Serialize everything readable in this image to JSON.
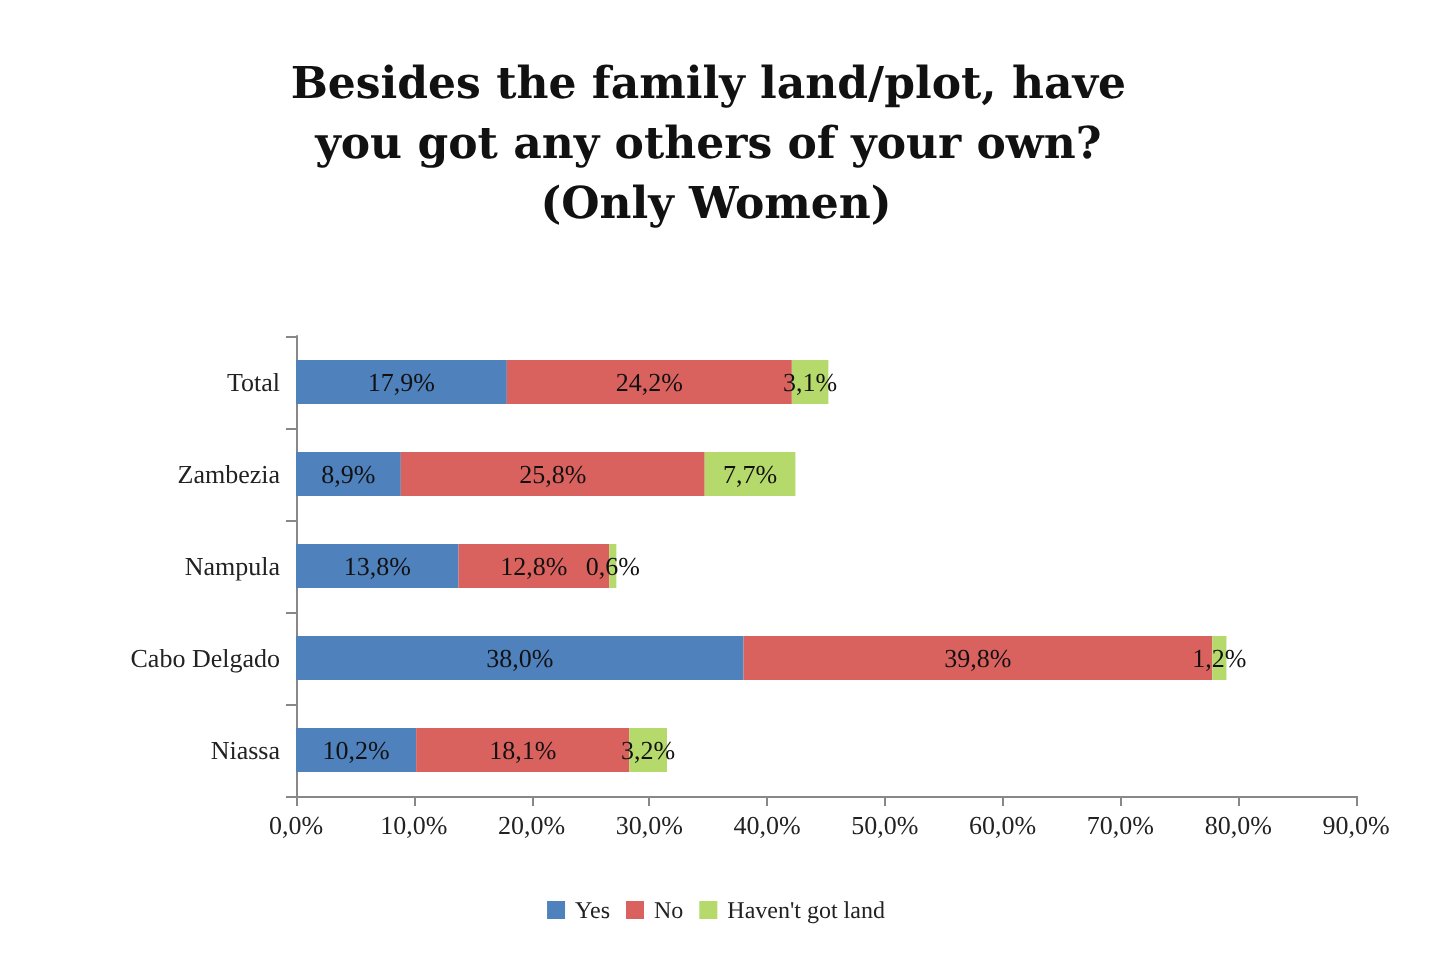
{
  "chart_data": {
    "type": "bar",
    "orientation": "horizontal",
    "stacked": true,
    "title": "Besides the family land/plot, have you got any others of your own? (Only Women)",
    "categories": [
      "Total",
      "Zambezia",
      "Nampula",
      "Cabo Delgado",
      "Niassa"
    ],
    "series": [
      {
        "name": "Yes",
        "color": "#4f81bd",
        "values": [
          17.9,
          8.9,
          13.8,
          38.0,
          10.2
        ],
        "value_labels": [
          "17,9%",
          "8,9%",
          "13,8%",
          "38,0%",
          "10,2%"
        ]
      },
      {
        "name": "No",
        "color": "#d9625f",
        "values": [
          24.2,
          25.8,
          12.8,
          39.8,
          18.1
        ],
        "value_labels": [
          "24,2%",
          "25,8%",
          "12,8%",
          "39,8%",
          "18,1%"
        ]
      },
      {
        "name": "Haven't got land",
        "color": "#b5d96a",
        "values": [
          3.1,
          7.7,
          0.6,
          1.2,
          3.2
        ],
        "value_labels": [
          "3,1%",
          "7,7%",
          "0,6%",
          "1,2%",
          "3,2%"
        ]
      }
    ],
    "xlim": [
      0,
      90
    ],
    "xticks": [
      {
        "value": 0,
        "label": "0,0%"
      },
      {
        "value": 10,
        "label": "10,0%"
      },
      {
        "value": 20,
        "label": "20,0%"
      },
      {
        "value": 30,
        "label": "30,0%"
      },
      {
        "value": 40,
        "label": "40,0%"
      },
      {
        "value": 50,
        "label": "50,0%"
      },
      {
        "value": 60,
        "label": "60,0%"
      },
      {
        "value": 70,
        "label": "70,0%"
      },
      {
        "value": 80,
        "label": "80,0%"
      },
      {
        "value": 90,
        "label": "90,0%"
      }
    ],
    "grid": false,
    "legend": "bottom"
  }
}
